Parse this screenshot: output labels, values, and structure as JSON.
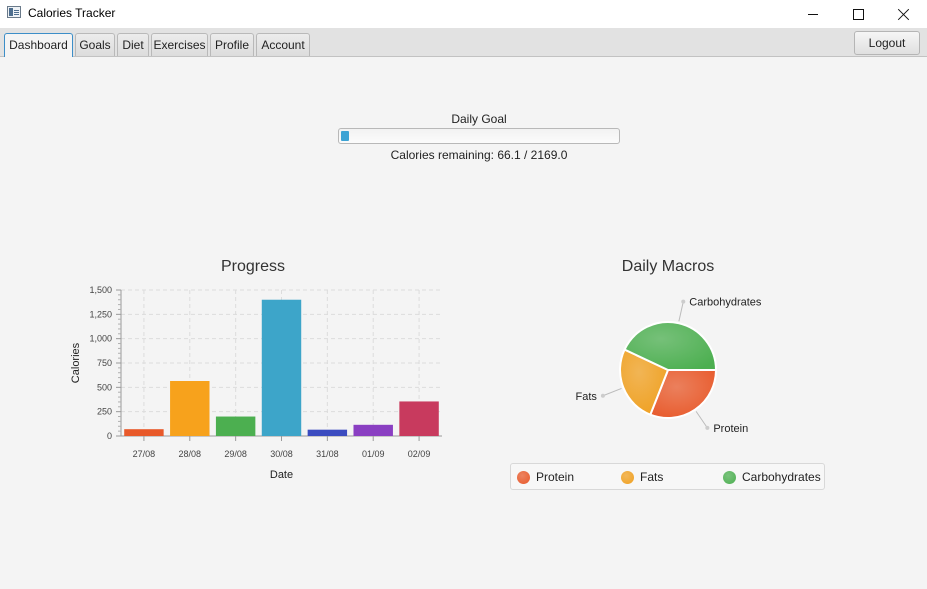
{
  "window": {
    "title": "Calories Tracker"
  },
  "tabs": [
    {
      "label": "Dashboard",
      "active": true
    },
    {
      "label": "Goals",
      "active": false
    },
    {
      "label": "Diet",
      "active": false
    },
    {
      "label": "Exercises",
      "active": false
    },
    {
      "label": "Profile",
      "active": false
    },
    {
      "label": "Account",
      "active": false
    }
  ],
  "logout_label": "Logout",
  "daily_goal": {
    "label": "Daily Goal",
    "remaining_text": "Calories remaining: 66.1 / 2169.0",
    "progress_fraction": 0.03
  },
  "chart_data": [
    {
      "type": "bar",
      "title": "Progress",
      "xlabel": "Date",
      "ylabel": "Calories",
      "ylim": [
        0,
        1500
      ],
      "yticks": [
        0,
        250,
        500,
        750,
        1000,
        1250,
        1500
      ],
      "ytick_labels": [
        "0",
        "250",
        "500",
        "750",
        "1,000",
        "1,250",
        "1,500"
      ],
      "grid": true,
      "categories": [
        "27/08",
        "28/08",
        "29/08",
        "30/08",
        "31/08",
        "01/09",
        "02/09"
      ],
      "values": [
        70,
        565,
        200,
        1400,
        65,
        115,
        355
      ],
      "colors": [
        "#e8592a",
        "#f7a21c",
        "#4caf50",
        "#3da5c9",
        "#3b4cc0",
        "#8a3fc2",
        "#c83a5e"
      ]
    },
    {
      "type": "pie",
      "title": "Daily Macros",
      "labels": [
        "Protein",
        "Fats",
        "Carbohydrates"
      ],
      "values": [
        31,
        26,
        43
      ],
      "colors": [
        "#e8592a",
        "#f0a020",
        "#4caf50"
      ],
      "legend": "bottom"
    }
  ]
}
